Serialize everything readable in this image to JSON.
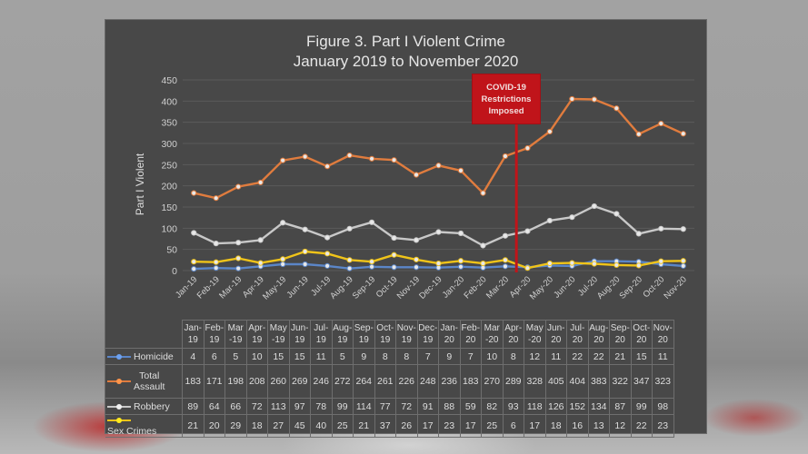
{
  "slide": {
    "title_line1": "Figure 3. Part I Violent Crime",
    "title_line2": "January 2019 to November 2020",
    "annotation": {
      "line1": "COVID-19",
      "line2": "Restrictions",
      "line3": "Imposed",
      "color": "#c0141a"
    }
  },
  "table": {
    "header_cells": [
      [
        "Jan-",
        "19"
      ],
      [
        "Feb-",
        "19"
      ],
      [
        "Mar",
        "-19"
      ],
      [
        "Apr-",
        "19"
      ],
      [
        "May",
        "-19"
      ],
      [
        "Jun-",
        "19"
      ],
      [
        "Jul-",
        "19"
      ],
      [
        "Aug-",
        "19"
      ],
      [
        "Sep-",
        "19"
      ],
      [
        "Oct-",
        "19"
      ],
      [
        "Nov-",
        "19"
      ],
      [
        "Dec-",
        "19"
      ],
      [
        "Jan-",
        "20"
      ],
      [
        "Feb-",
        "20"
      ],
      [
        "Mar",
        "-20"
      ],
      [
        "Apr-",
        "20"
      ],
      [
        "May",
        "-20"
      ],
      [
        "Jun-",
        "20"
      ],
      [
        "Jul-",
        "20"
      ],
      [
        "Aug-",
        "20"
      ],
      [
        "Sep-",
        "20"
      ],
      [
        "Oct-",
        "20"
      ],
      [
        "Nov-",
        "20"
      ]
    ],
    "rows": [
      {
        "label_line1": "Homicide",
        "label_line2": "",
        "color": "#5b86c8",
        "values": [
          4,
          6,
          5,
          10,
          15,
          15,
          11,
          5,
          9,
          8,
          8,
          7,
          9,
          7,
          10,
          8,
          12,
          11,
          22,
          22,
          21,
          15,
          11
        ]
      },
      {
        "label_line1": "Total",
        "label_line2": "Assault",
        "color": "#e07c3e",
        "values": [
          183,
          171,
          198,
          208,
          260,
          269,
          246,
          272,
          264,
          261,
          226,
          248,
          236,
          183,
          270,
          289,
          328,
          405,
          404,
          383,
          322,
          347,
          323
        ]
      },
      {
        "label_line1": "Robbery",
        "label_line2": "",
        "color": "#c8c8c8",
        "values": [
          89,
          64,
          66,
          72,
          113,
          97,
          78,
          99,
          114,
          77,
          72,
          91,
          88,
          59,
          82,
          93,
          118,
          126,
          152,
          134,
          87,
          99,
          98
        ]
      },
      {
        "label_line1": "Sex Crimes",
        "label_line2": "",
        "color": "#f0c419",
        "values": [
          21,
          20,
          29,
          18,
          27,
          45,
          40,
          25,
          21,
          37,
          26,
          17,
          23,
          17,
          25,
          6,
          17,
          18,
          16,
          13,
          12,
          22,
          23
        ]
      }
    ]
  },
  "chart_data": {
    "type": "line",
    "title": "Figure 3. Part I Violent Crime",
    "subtitle": "January 2019 to November 2020",
    "xlabel": "",
    "ylabel": "Part I Violent",
    "ylim": [
      0,
      450
    ],
    "yticks": [
      0,
      50,
      100,
      150,
      200,
      250,
      300,
      350,
      400,
      450
    ],
    "grid": true,
    "legend_position": "table-left",
    "categories": [
      "Jan-19",
      "Feb-19",
      "Mar-19",
      "Apr-19",
      "May-19",
      "Jun-19",
      "Jul-19",
      "Aug-19",
      "Sep-19",
      "Oct-19",
      "Nov-19",
      "Dec-19",
      "Jan-20",
      "Feb-20",
      "Mar-20",
      "Apr-20",
      "May-20",
      "Jun-20",
      "Jul-20",
      "Aug-20",
      "Sep-20",
      "Oct-20",
      "Nov-20"
    ],
    "series": [
      {
        "name": "Homicide",
        "color": "#5b86c8",
        "values": [
          4,
          6,
          5,
          10,
          15,
          15,
          11,
          5,
          9,
          8,
          8,
          7,
          9,
          7,
          10,
          8,
          12,
          11,
          22,
          22,
          21,
          15,
          11
        ]
      },
      {
        "name": "Total Assault",
        "color": "#e07c3e",
        "values": [
          183,
          171,
          198,
          208,
          260,
          269,
          246,
          272,
          264,
          261,
          226,
          248,
          236,
          183,
          270,
          289,
          328,
          405,
          404,
          383,
          322,
          347,
          323
        ]
      },
      {
        "name": "Robbery",
        "color": "#c8c8c8",
        "values": [
          89,
          64,
          66,
          72,
          113,
          97,
          78,
          99,
          114,
          77,
          72,
          91,
          88,
          59,
          82,
          93,
          118,
          126,
          152,
          134,
          87,
          99,
          98
        ]
      },
      {
        "name": "Sex Crimes",
        "color": "#f0c419",
        "values": [
          21,
          20,
          29,
          18,
          27,
          45,
          40,
          25,
          21,
          37,
          26,
          17,
          23,
          17,
          25,
          6,
          17,
          18,
          16,
          13,
          12,
          22,
          23
        ]
      }
    ],
    "annotations": [
      {
        "text": "COVID-19 Restrictions Imposed",
        "x_between": [
          "Mar-20",
          "Apr-20"
        ],
        "type": "vertical-line",
        "color": "#c0141a"
      }
    ]
  }
}
